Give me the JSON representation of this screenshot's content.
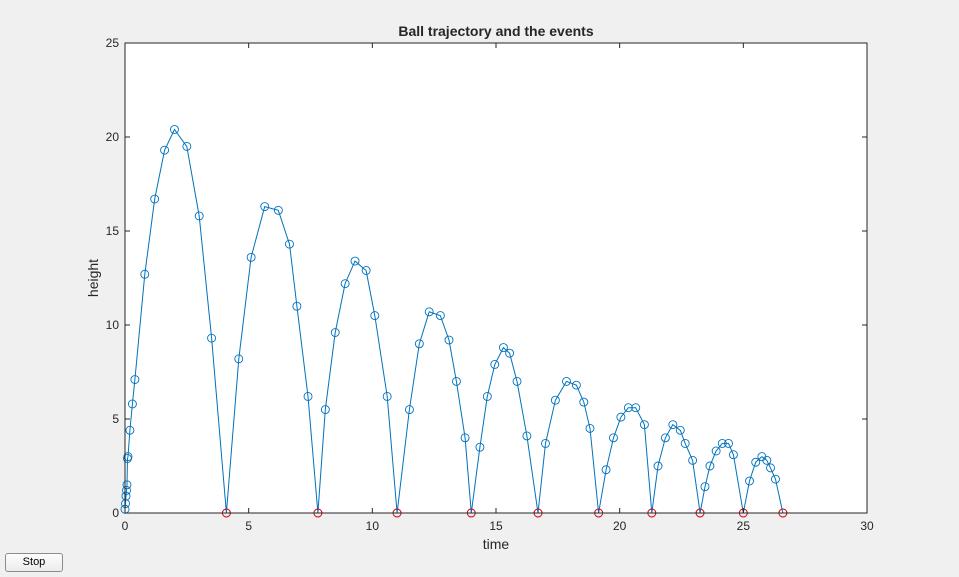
{
  "controls": {
    "stop_label": "Stop"
  },
  "chart_data": {
    "type": "line",
    "title": "Ball trajectory and the events",
    "xlabel": "time",
    "ylabel": "height",
    "xlim": [
      0,
      30
    ],
    "ylim": [
      0,
      25
    ],
    "xticks": [
      "0",
      "5",
      "10",
      "15",
      "20",
      "25",
      "30"
    ],
    "yticks": [
      "0",
      "5",
      "10",
      "15",
      "20",
      "25"
    ],
    "grid": false,
    "legend": "none",
    "colors": {
      "trajectory": "#0072bd",
      "events": "#ff0000",
      "axes": "#262626",
      "plot_bg": "#ffffff"
    },
    "series": [
      {
        "type": "line-with-circle-markers",
        "x": [
          0.0,
          0.02,
          0.04,
          0.06,
          0.08,
          0.1,
          0.12,
          0.2,
          0.3,
          0.4,
          0.8,
          1.2,
          1.6,
          2.0,
          2.5,
          3.0,
          3.5,
          4.1,
          4.6,
          5.1,
          5.65,
          6.2,
          6.65,
          6.95,
          7.4,
          7.8,
          8.1,
          8.5,
          8.9,
          9.3,
          9.75,
          10.1,
          10.6,
          11.0,
          11.5,
          11.9,
          12.3,
          12.75,
          13.1,
          13.4,
          13.75,
          14.0,
          14.35,
          14.65,
          14.95,
          15.3,
          15.55,
          15.85,
          16.25,
          16.7,
          17.0,
          17.4,
          17.85,
          18.25,
          18.55,
          18.8,
          19.15,
          19.45,
          19.75,
          20.05,
          20.35,
          20.65,
          21.0,
          21.3,
          21.55,
          21.85,
          22.15,
          22.45,
          22.65,
          22.95,
          23.25,
          23.45,
          23.65,
          23.9,
          24.15,
          24.4,
          24.6,
          25.0,
          25.25,
          25.5,
          25.75,
          25.95,
          26.1,
          26.3,
          26.6
        ],
        "y": [
          0.2,
          0.5,
          0.9,
          1.2,
          1.5,
          2.9,
          3.0,
          4.4,
          5.8,
          7.1,
          12.7,
          16.7,
          19.3,
          20.4,
          19.5,
          15.8,
          9.3,
          0.0,
          8.2,
          13.6,
          16.3,
          16.1,
          14.3,
          11.0,
          6.2,
          0.0,
          5.5,
          9.6,
          12.2,
          13.4,
          12.9,
          10.5,
          6.2,
          0.0,
          5.5,
          9.0,
          10.7,
          10.5,
          9.2,
          7.0,
          4.0,
          0.0,
          3.5,
          6.2,
          7.9,
          8.8,
          8.5,
          7.0,
          4.1,
          0.0,
          3.7,
          6.0,
          7.0,
          6.8,
          5.9,
          4.5,
          0.0,
          2.3,
          4.0,
          5.1,
          5.6,
          5.6,
          4.7,
          0.0,
          2.5,
          4.0,
          4.7,
          4.4,
          3.7,
          2.8,
          0.0,
          1.4,
          2.5,
          3.3,
          3.7,
          3.7,
          3.1,
          0.0,
          1.7,
          2.7,
          3.0,
          2.8,
          2.4,
          1.8,
          0.0
        ]
      },
      {
        "type": "event-markers",
        "x": [
          4.1,
          7.8,
          11.0,
          14.0,
          16.7,
          19.15,
          21.3,
          23.25,
          25.0,
          26.6
        ],
        "y": [
          0,
          0,
          0,
          0,
          0,
          0,
          0,
          0,
          0,
          0
        ]
      }
    ]
  }
}
